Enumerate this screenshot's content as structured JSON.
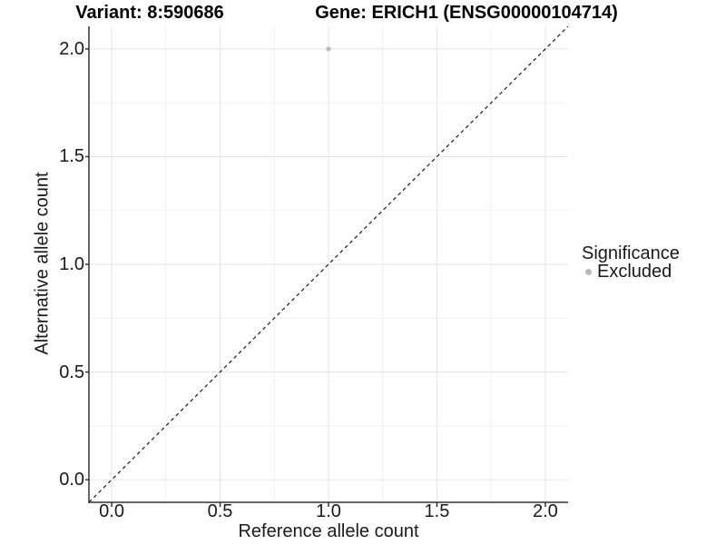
{
  "chart_data": {
    "type": "scatter",
    "titles": {
      "left": "Variant: 8:590686",
      "right": "Gene: ERICH1 (ENSG00000104714)"
    },
    "xlabel": "Reference allele count",
    "ylabel": "Alternative allele count",
    "xlim": [
      -0.105,
      2.105
    ],
    "ylim": [
      -0.105,
      2.105
    ],
    "xticks": {
      "values": [
        0,
        0.5,
        1,
        1.5,
        2
      ],
      "labels": [
        "0.0",
        "0.5",
        "1.0",
        "1.5",
        "2.0"
      ]
    },
    "yticks": {
      "values": [
        0,
        0.5,
        1,
        1.5,
        2
      ],
      "labels": [
        "0.0",
        "0.5",
        "1.0",
        "1.5",
        "2.0"
      ]
    },
    "minor_ticks": {
      "x": [
        0.25,
        0.75,
        1.25,
        1.75
      ],
      "y": [
        0.25,
        0.75,
        1.25,
        1.75
      ]
    },
    "grid": "major-and-minor",
    "points": [
      {
        "x": 1.0,
        "y": 2.0,
        "series": "Excluded"
      }
    ],
    "reference_line": {
      "slope": 1,
      "intercept": 0,
      "style": "dashed"
    },
    "legend": {
      "title": "Significance",
      "position": "right",
      "entries": [
        {
          "label": "Excluded",
          "color": "#b9b9b9"
        }
      ]
    },
    "colors": {
      "point": "#b9b9b9",
      "grid_major": "#e4e4e4",
      "grid_minor": "#f1f1f1",
      "axis_line": "#333333",
      "dashed_line": "#1a1a1a",
      "text": "#1a1a1a",
      "background": "#ffffff"
    }
  }
}
